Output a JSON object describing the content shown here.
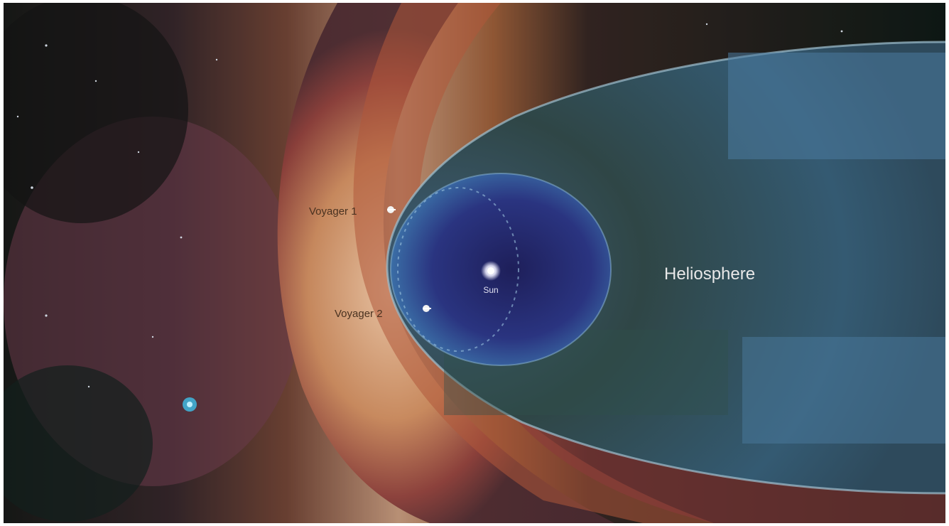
{
  "image": {
    "kind": "illustration",
    "colors": {
      "space": "#141414",
      "heliosheath_blue": "#3b6f96",
      "heliosphere_dark": "#2c3a3a",
      "inner_core": "#2a2d6e",
      "bow_pink": "#c9a99a",
      "bow_orange": "#c77a4c",
      "label_text": "#e8e8e8",
      "voyager_label": "#6b4a2a"
    }
  },
  "labels": {
    "heliosphere": "Heliosphere",
    "sun": "Sun",
    "voyager_1": "Voyager 1",
    "voyager_2": "Voyager 2"
  }
}
